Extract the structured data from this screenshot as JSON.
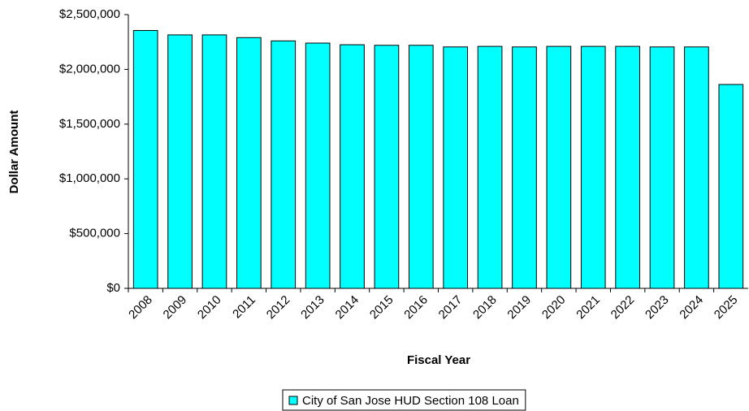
{
  "chart_data": {
    "type": "bar",
    "x_label": "Fiscal Year",
    "y_label": "Dollar Amount",
    "categories": [
      "2008",
      "2009",
      "2010",
      "2011",
      "2012",
      "2013",
      "2014",
      "2015",
      "2016",
      "2017",
      "2018",
      "2019",
      "2020",
      "2021",
      "2022",
      "2023",
      "2024",
      "2025"
    ],
    "series": [
      {
        "name": "City of San Jose HUD Section 108 Loan",
        "color": "#00FFFF",
        "values": [
          2355000,
          2315000,
          2315000,
          2290000,
          2260000,
          2240000,
          2225000,
          2220000,
          2220000,
          2205000,
          2210000,
          2205000,
          2210000,
          2210000,
          2210000,
          2205000,
          2205000,
          1862000
        ]
      }
    ],
    "ylim": [
      0,
      2500000
    ],
    "yticks": [
      {
        "value": 0,
        "label": "$0"
      },
      {
        "value": 500000,
        "label": "$500,000"
      },
      {
        "value": 1000000,
        "label": "$1,000,000"
      },
      {
        "value": 1500000,
        "label": "$1,500,000"
      },
      {
        "value": 2000000,
        "label": "$2,000,000"
      },
      {
        "value": 2500000,
        "label": "$2,500,000"
      }
    ],
    "grid": false,
    "legend": "bottom"
  }
}
